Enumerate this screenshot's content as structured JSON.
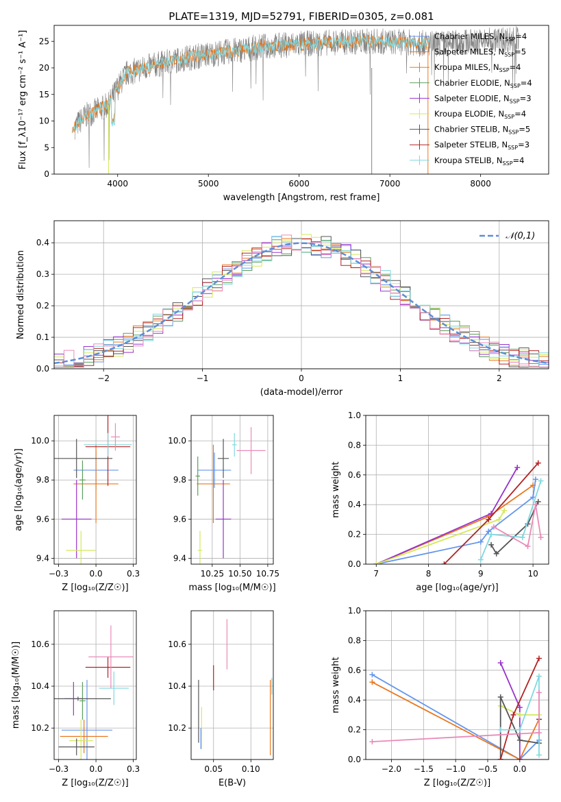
{
  "colors": {
    "Chabrier MILES": "#6495ed",
    "Salpeter MILES": "#e8781e",
    "Kroupa MILES": "#e8781e",
    "Chabrier ELODIE": "#5a9e5a",
    "Salpeter ELODIE": "#9932cc",
    "Kroupa ELODIE": "#d4e85a",
    "Chabrier STELIB": "#555555",
    "Salpeter STELIB": "#b22222",
    "Kroupa STELIB": "#7fd8e0",
    "pink": "#e98ab8",
    "gauss": "#5b8ed6"
  },
  "chart_data": [
    {
      "id": "spectrum",
      "type": "line",
      "title": "PLATE=1319, MJD=52791, FIBERID=0305, z=0.081",
      "xlabel": "wavelength [Angstrom, rest frame]",
      "ylabel": "Flux [f_λ10⁻¹⁷ erg cm⁻² s⁻¹ A⁻¹]",
      "xlim": [
        3300,
        8750
      ],
      "ylim": [
        0,
        28
      ],
      "xticks": [
        4000,
        5000,
        6000,
        7000,
        8000
      ],
      "yticks": [
        0,
        5,
        10,
        15,
        20,
        25
      ],
      "legend_position": "right",
      "legend": [
        {
          "name": "Chabrier MILES",
          "nssp": "4"
        },
        {
          "name": "Salpeter MILES",
          "nssp": "5"
        },
        {
          "name": "Kroupa MILES",
          "nssp": "4"
        },
        {
          "name": "Chabrier ELODIE",
          "nssp": "4"
        },
        {
          "name": "Salpeter ELODIE",
          "nssp": "3"
        },
        {
          "name": "Kroupa ELODIE",
          "nssp": "4"
        },
        {
          "name": "Chabrier STELIB",
          "nssp": "5"
        },
        {
          "name": "Salpeter STELIB",
          "nssp": "3"
        },
        {
          "name": "Kroupa STELIB",
          "nssp": "4"
        }
      ],
      "continuum": [
        [
          3530,
          9
        ],
        [
          3650,
          11
        ],
        [
          3900,
          13
        ],
        [
          3990,
          16
        ],
        [
          4100,
          19
        ],
        [
          4400,
          20.5
        ],
        [
          4800,
          22
        ],
        [
          5200,
          23
        ],
        [
          5600,
          24
        ],
        [
          6000,
          24.5
        ],
        [
          6400,
          24.8
        ],
        [
          6800,
          25
        ],
        [
          7200,
          24.8
        ],
        [
          7500,
          24.5
        ],
        [
          8000,
          25
        ],
        [
          8400,
          25.5
        ]
      ]
    },
    {
      "id": "residuals",
      "type": "line",
      "xlabel": "(data-model)/error",
      "ylabel": "Normed distribution",
      "xlim": [
        -2.5,
        2.5
      ],
      "ylim": [
        0,
        0.47
      ],
      "xticks": [
        -2,
        -1,
        0,
        1,
        2
      ],
      "yticks": [
        0.0,
        0.1,
        0.2,
        0.3,
        0.4
      ],
      "legend": "𝒩(0,1)",
      "legend_position": "top-right"
    },
    {
      "id": "age_vs_Z",
      "type": "scatter",
      "xlabel": "Z [log₁₀(Z/Z☉)]",
      "ylabel": "age  [log₁₀(age/yr)]",
      "xlim": [
        -0.28,
        0.27
      ],
      "ylim": [
        9.37,
        10.13
      ],
      "xticks": [
        -0.25,
        0.0,
        0.25
      ],
      "yticks": [
        9.4,
        9.6,
        9.8,
        10.0
      ],
      "points": [
        {
          "color": "Chabrier MILES",
          "x": 0.0,
          "xerr": 0.15,
          "y": 9.85,
          "yerr": 0.1
        },
        {
          "color": "Salpeter MILES",
          "x": 0.0,
          "xerr": 0.15,
          "y": 9.78,
          "yerr": 0.2
        },
        {
          "color": "Chabrier ELODIE",
          "x": -0.09,
          "xerr": 0.02,
          "y": 9.8,
          "yerr": 0.1
        },
        {
          "color": "Salpeter ELODIE",
          "x": -0.13,
          "xerr": 0.1,
          "y": 9.6,
          "yerr": 0.2
        },
        {
          "color": "Kroupa ELODIE",
          "x": -0.1,
          "xerr": 0.1,
          "y": 9.44,
          "yerr": 0.1
        },
        {
          "color": "Chabrier STELIB",
          "x": -0.13,
          "xerr": 0.24,
          "y": 9.91,
          "yerr": 0.1
        },
        {
          "color": "Salpeter STELIB",
          "x": 0.08,
          "xerr": 0.15,
          "y": 9.97,
          "yerr": 0.2
        },
        {
          "color": "Kroupa STELIB",
          "x": 0.08,
          "xerr": 0.16,
          "y": 9.98,
          "yerr": 0.06
        },
        {
          "color": "pink",
          "x": 0.13,
          "xerr": 0.03,
          "y": 10.02,
          "yerr": 0.07
        }
      ]
    },
    {
      "id": "age_vs_mass",
      "type": "scatter",
      "xlabel": "mass [log₁₀(M/M☉)]",
      "xlim": [
        10.06,
        10.8
      ],
      "ylim": [
        9.37,
        10.13
      ],
      "xticks": [
        10.25,
        10.5,
        10.75
      ],
      "yticks": [
        9.4,
        9.6,
        9.8,
        10.0
      ],
      "points": [
        {
          "color": "Chabrier MILES",
          "x": 10.27,
          "xerr": 0.15,
          "y": 9.85,
          "yerr": 0.09
        },
        {
          "color": "Salpeter MILES",
          "x": 10.26,
          "xerr": 0.15,
          "y": 9.78,
          "yerr": 0.2
        },
        {
          "color": "Chabrier ELODIE",
          "x": 10.12,
          "xerr": 0.02,
          "y": 9.82,
          "yerr": 0.1
        },
        {
          "color": "Salpeter ELODIE",
          "x": 10.35,
          "xerr": 0.07,
          "y": 9.6,
          "yerr": 0.2
        },
        {
          "color": "Kroupa ELODIE",
          "x": 10.14,
          "xerr": 0.02,
          "y": 9.44,
          "yerr": 0.1
        },
        {
          "color": "Chabrier STELIB",
          "x": 10.35,
          "xerr": 0.05,
          "y": 9.91,
          "yerr": 0.1
        },
        {
          "color": "Kroupa STELIB",
          "x": 10.45,
          "xerr": 0.02,
          "y": 9.98,
          "yerr": 0.06
        },
        {
          "color": "pink",
          "x": 10.6,
          "xerr": 0.13,
          "y": 9.95,
          "yerr": 0.12
        }
      ]
    },
    {
      "id": "weight_vs_age",
      "type": "line",
      "xlabel": "age  [log₁₀(age/yr)]",
      "ylabel": "mass weight",
      "xlim": [
        6.8,
        10.3
      ],
      "ylim": [
        0,
        1.0
      ],
      "xticks": [
        7,
        8,
        9,
        10
      ],
      "yticks": [
        0.0,
        0.2,
        0.4,
        0.6,
        0.8,
        1.0
      ],
      "series": [
        {
          "color": "Chabrier MILES",
          "x": [
            7.0,
            9.0,
            9.15,
            10.0,
            10.05
          ],
          "y": [
            0.0,
            0.15,
            0.22,
            0.45,
            0.57
          ]
        },
        {
          "color": "Salpeter MILES",
          "x": [
            7.0,
            9.15,
            10.0
          ],
          "y": [
            0.0,
            0.32,
            0.53
          ]
        },
        {
          "color": "Salpeter ELODIE",
          "x": [
            7.0,
            9.2,
            9.7
          ],
          "y": [
            0.0,
            0.34,
            0.65
          ]
        },
        {
          "color": "Kroupa ELODIE",
          "x": [
            7.0,
            9.35,
            9.45
          ],
          "y": [
            0.0,
            0.3,
            0.36
          ]
        },
        {
          "color": "Chabrier STELIB",
          "x": [
            9.2,
            9.3,
            9.9,
            10.1
          ],
          "y": [
            0.13,
            0.07,
            0.27,
            0.42
          ]
        },
        {
          "color": "Salpeter STELIB",
          "x": [
            8.3,
            9.15,
            10.1
          ],
          "y": [
            0.0,
            0.3,
            0.68
          ]
        },
        {
          "color": "Kroupa STELIB",
          "x": [
            9.0,
            9.2,
            9.8,
            10.15
          ],
          "y": [
            0.03,
            0.2,
            0.18,
            0.56
          ]
        },
        {
          "color": "pink",
          "x": [
            9.25,
            9.9,
            10.05,
            10.15
          ],
          "y": [
            0.25,
            0.12,
            0.4,
            0.18
          ]
        }
      ]
    },
    {
      "id": "mass_vs_Z",
      "type": "scatter",
      "xlabel": "Z [log₁₀(Z/Z☉)]",
      "ylabel": "mass [log₁₀(M/M☉)]",
      "xlim": [
        -0.28,
        0.27
      ],
      "ylim": [
        10.05,
        10.76
      ],
      "xticks": [
        -0.25,
        0.0,
        0.25
      ],
      "yticks": [
        10.2,
        10.4,
        10.6
      ],
      "points": [
        {
          "color": "Chabrier MILES",
          "x": -0.06,
          "xerr": 0.17,
          "y": 10.19,
          "yerr": 0.24
        },
        {
          "color": "Salpeter MILES",
          "x": -0.08,
          "xerr": 0.16,
          "y": 10.16,
          "yerr": 0.08
        },
        {
          "color": "Chabrier ELODIE",
          "x": -0.09,
          "xerr": 0.02,
          "y": 10.33,
          "yerr": 0.09
        },
        {
          "color": "Salpeter ELODIE",
          "x": -0.15,
          "xerr": 0.06,
          "y": 10.34,
          "yerr": 0.08
        },
        {
          "color": "Kroupa ELODIE",
          "x": -0.1,
          "xerr": 0.08,
          "y": 10.14,
          "yerr": 0.1
        },
        {
          "color": "Chabrier STELIB",
          "x": -0.13,
          "xerr": 0.12,
          "y": 10.11,
          "yerr": 0.04
        },
        {
          "color": "Salpeter STELIB",
          "x": 0.08,
          "xerr": 0.15,
          "y": 10.49,
          "yerr": 0.05
        },
        {
          "color": "Kroupa STELIB",
          "x": 0.12,
          "xerr": 0.1,
          "y": 10.39,
          "yerr": 0.08
        },
        {
          "color": "pink",
          "x": 0.1,
          "xerr": 0.15,
          "y": 10.54,
          "yerr": 0.15
        },
        {
          "color": "Chabrier STELIB",
          "x": -0.12,
          "xerr": 0.22,
          "y": 10.34,
          "yerr": 0.01
        }
      ]
    },
    {
      "id": "mass_vs_ebv",
      "type": "scatter",
      "xlabel": "E(B-V)",
      "xlim": [
        0.02,
        0.13
      ],
      "ylim": [
        10.05,
        10.76
      ],
      "xticks": [
        0.05,
        0.1
      ],
      "yticks": [
        10.2,
        10.4,
        10.6
      ],
      "points": [
        {
          "color": "Chabrier STELIB",
          "x": 0.03,
          "y": 10.28,
          "yerr": 0.15
        },
        {
          "color": "Kroupa ELODIE",
          "x": 0.034,
          "y": 10.2,
          "yerr": 0.1
        },
        {
          "color": "Chabrier MILES",
          "x": 0.033,
          "y": 10.15,
          "yerr": 0.05
        },
        {
          "color": "Salpeter STELIB",
          "x": 0.05,
          "y": 10.44,
          "yerr": 0.06
        },
        {
          "color": "pink",
          "x": 0.068,
          "y": 10.6,
          "yerr": 0.12
        },
        {
          "color": "Salpeter MILES",
          "x": 0.126,
          "y": 10.25,
          "yerr": 0.18
        },
        {
          "color": "Kroupa STELIB",
          "x": 0.128,
          "y": 10.4,
          "yerr": 0.04
        }
      ]
    },
    {
      "id": "weight_vs_Z",
      "type": "line",
      "xlabel": "Z [log₁₀(Z/Z☉)]",
      "ylabel": "mass weight",
      "xlim": [
        -2.4,
        0.45
      ],
      "ylim": [
        0,
        1.0
      ],
      "xticks": [
        -2.0,
        -1.5,
        -1.0,
        -0.5,
        0.0
      ],
      "yticks": [
        0.0,
        0.2,
        0.4,
        0.6,
        0.8,
        1.0
      ],
      "series": [
        {
          "color": "Chabrier MILES",
          "x": [
            -2.3,
            0.0,
            0.3
          ],
          "y": [
            0.57,
            0.0,
            0.13
          ]
        },
        {
          "color": "Salpeter MILES",
          "x": [
            -2.3,
            0.0,
            0.3
          ],
          "y": [
            0.52,
            0.0,
            0.27
          ]
        },
        {
          "color": "Salpeter ELODIE",
          "x": [
            -0.3,
            0.0,
            0.0
          ],
          "y": [
            0.65,
            0.35,
            0.0
          ]
        },
        {
          "color": "Kroupa ELODIE",
          "x": [
            -0.3,
            0.0,
            0.3
          ],
          "y": [
            0.36,
            0.3,
            0.3
          ]
        },
        {
          "color": "Chabrier STELIB",
          "x": [
            -0.3,
            -0.3,
            0.0,
            0.3,
            0.3
          ],
          "y": [
            0.0,
            0.42,
            0.13,
            0.11,
            0.27
          ]
        },
        {
          "color": "Salpeter STELIB",
          "x": [
            -0.3,
            -0.1,
            0.3
          ],
          "y": [
            0.0,
            0.3,
            0.68
          ]
        },
        {
          "color": "Kroupa STELIB",
          "x": [
            -0.3,
            0.0,
            0.3,
            0.3
          ],
          "y": [
            0.2,
            0.2,
            0.56,
            0.03
          ]
        },
        {
          "color": "pink",
          "x": [
            -2.3,
            0.3,
            0.3
          ],
          "y": [
            0.12,
            0.18,
            0.45
          ]
        }
      ]
    }
  ]
}
